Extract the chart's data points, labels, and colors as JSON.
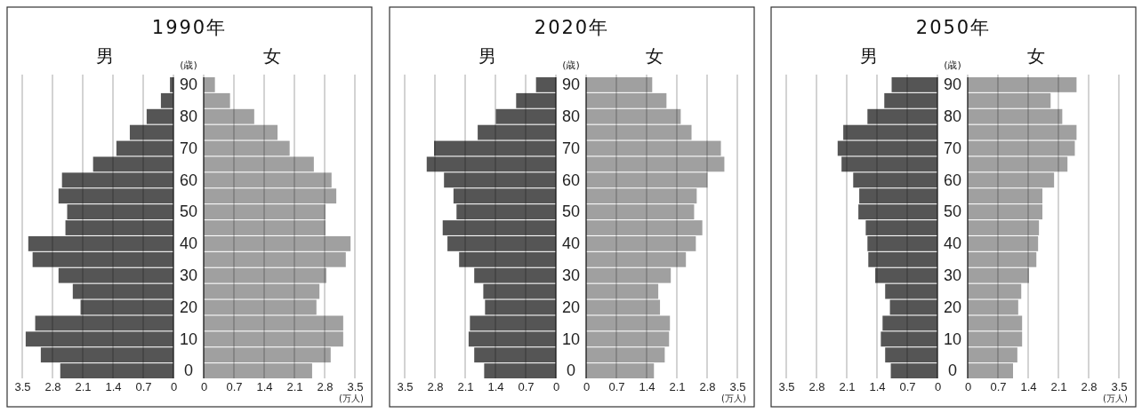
{
  "chart_data": [
    {
      "type": "bar",
      "orientation": "horizontal",
      "title": "1990年",
      "ylabel": "(歳)",
      "categories": [
        "90",
        null,
        "80",
        null,
        "70",
        null,
        "60",
        null,
        "50",
        null,
        "40",
        null,
        "30",
        null,
        "20",
        null,
        "10",
        null,
        "0"
      ],
      "xlim": [
        3.5,
        0
      ],
      "xticks": [
        3.5,
        2.8,
        2.1,
        1.4,
        0.7,
        0
      ],
      "grid": "x",
      "legend": false,
      "series": [
        {
          "name": "男",
          "color": "#555555",
          "values": [
            0.08,
            0.29,
            0.62,
            1.01,
            1.32,
            1.86,
            2.58,
            2.66,
            2.46,
            2.5,
            3.36,
            3.26,
            2.66,
            2.33,
            2.15,
            3.2,
            3.42,
            3.07,
            2.62
          ]
        }
      ]
    },
    {
      "type": "bar",
      "orientation": "horizontal",
      "xlabel": "(万人)",
      "categories": [
        "90",
        null,
        "80",
        null,
        "70",
        null,
        "60",
        null,
        "50",
        null,
        "40",
        null,
        "30",
        null,
        "20",
        null,
        "10",
        null,
        "0"
      ],
      "xlim": [
        0,
        3.5
      ],
      "xticks": [
        0,
        0.7,
        1.4,
        2.1,
        2.8,
        3.5
      ],
      "grid": "x",
      "legend": false,
      "tick_labels": "x",
      "series": [
        {
          "name": "女",
          "color": "#a0a0a0",
          "values": [
            0.26,
            0.61,
            1.17,
            1.71,
            1.99,
            2.55,
            2.96,
            3.07,
            2.82,
            2.82,
            3.4,
            3.29,
            2.84,
            2.68,
            2.61,
            3.23,
            3.23,
            2.94,
            2.51
          ]
        }
      ]
    },
    {
      "type": "bar",
      "orientation": "horizontal",
      "title": "2020年",
      "ylabel": "(歳)",
      "categories": [
        "90",
        null,
        "80",
        null,
        "70",
        null,
        "60",
        null,
        "50",
        null,
        "40",
        null,
        "30",
        null,
        "20",
        null,
        "10",
        null,
        "0"
      ],
      "xlim": [
        3.5,
        0
      ],
      "xticks": [
        3.5,
        2.8,
        2.1,
        1.4,
        0.7,
        0
      ],
      "grid": "x",
      "legend": false,
      "series": [
        {
          "name": "男",
          "color": "#555555",
          "values": [
            0.46,
            0.92,
            1.39,
            1.81,
            2.82,
            2.99,
            2.59,
            2.37,
            2.3,
            2.62,
            2.51,
            2.24,
            1.89,
            1.68,
            1.64,
            1.99,
            2.02,
            1.89,
            1.66
          ]
        }
      ]
    },
    {
      "type": "bar",
      "orientation": "horizontal",
      "xlabel": "(万人)",
      "categories": [
        "90",
        null,
        "80",
        null,
        "70",
        null,
        "60",
        null,
        "50",
        null,
        "40",
        null,
        "30",
        null,
        "20",
        null,
        "10",
        null,
        "0"
      ],
      "xlim": [
        0,
        3.5
      ],
      "xticks": [
        0,
        0.7,
        1.4,
        2.1,
        2.8,
        3.5
      ],
      "grid": "x",
      "legend": false,
      "tick_labels": "x",
      "series": [
        {
          "name": "女",
          "color": "#a0a0a0",
          "values": [
            1.53,
            1.86,
            2.19,
            2.44,
            3.12,
            3.2,
            2.81,
            2.56,
            2.5,
            2.69,
            2.54,
            2.31,
            1.96,
            1.67,
            1.71,
            1.94,
            1.92,
            1.82,
            1.57
          ]
        }
      ]
    },
    {
      "type": "bar",
      "orientation": "horizontal",
      "title": "2050年",
      "ylabel": "(歳)",
      "categories": [
        "90",
        null,
        "80",
        null,
        "70",
        null,
        "60",
        null,
        "50",
        null,
        "40",
        null,
        "30",
        null,
        "20",
        null,
        "10",
        null,
        "0"
      ],
      "xlim": [
        3.5,
        0
      ],
      "xticks": [
        3.5,
        2.8,
        2.1,
        1.4,
        0.7,
        0
      ],
      "grid": "x",
      "legend": false,
      "series": [
        {
          "name": "男",
          "color": "#555555",
          "values": [
            1.06,
            1.23,
            1.62,
            2.18,
            2.31,
            2.22,
            1.95,
            1.81,
            1.83,
            1.66,
            1.62,
            1.6,
            1.44,
            1.21,
            1.1,
            1.27,
            1.31,
            1.21,
            1.08
          ]
        }
      ]
    },
    {
      "type": "bar",
      "orientation": "horizontal",
      "xlabel": "(万人)",
      "categories": [
        "90",
        null,
        "80",
        null,
        "70",
        null,
        "60",
        null,
        "50",
        null,
        "40",
        null,
        "30",
        null,
        "20",
        null,
        "10",
        null,
        "0"
      ],
      "xlim": [
        0,
        3.5
      ],
      "xticks": [
        0,
        0.7,
        1.4,
        2.1,
        2.8,
        3.5
      ],
      "grid": "x",
      "legend": false,
      "tick_labels": "x",
      "series": [
        {
          "name": "女",
          "color": "#a0a0a0",
          "values": [
            2.52,
            1.92,
            2.19,
            2.52,
            2.48,
            2.31,
            2.0,
            1.73,
            1.73,
            1.65,
            1.63,
            1.59,
            1.42,
            1.24,
            1.17,
            1.26,
            1.26,
            1.15,
            1.05
          ]
        }
      ]
    }
  ]
}
